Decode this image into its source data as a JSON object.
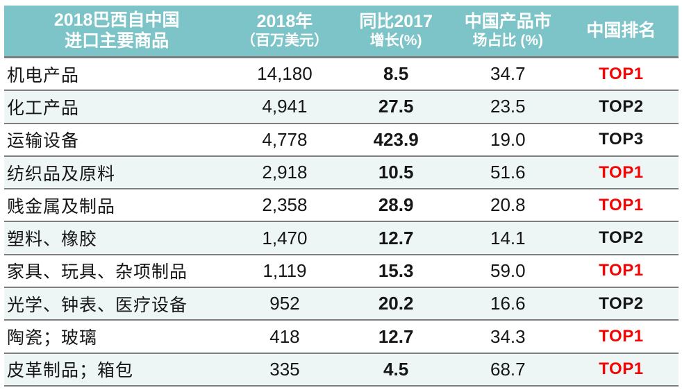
{
  "table": {
    "columns": [
      {
        "line1": "2018巴西自中国",
        "line2": "进口主要商品"
      },
      {
        "line1": "2018年",
        "line2": "（百万美元）"
      },
      {
        "line1": "同比2017",
        "line2": "增长(%)"
      },
      {
        "line1": "中国产品市",
        "line2": "场占比 (%)"
      },
      {
        "line1": "中国排名",
        "line2": ""
      }
    ],
    "rows": [
      {
        "product": "机电产品",
        "value_2018": "14,180",
        "yoy_growth": "8.5",
        "market_share": "34.7",
        "rank": "TOP1",
        "rank_highlight": true
      },
      {
        "product": "化工产品",
        "value_2018": "4,941",
        "yoy_growth": "27.5",
        "market_share": "23.5",
        "rank": "TOP2",
        "rank_highlight": false
      },
      {
        "product": "运输设备",
        "value_2018": "4,778",
        "yoy_growth": "423.9",
        "market_share": "19.0",
        "rank": "TOP3",
        "rank_highlight": false
      },
      {
        "product": "纺织品及原料",
        "value_2018": "2,918",
        "yoy_growth": "10.5",
        "market_share": "51.6",
        "rank": "TOP1",
        "rank_highlight": true
      },
      {
        "product": "贱金属及制品",
        "value_2018": "2,358",
        "yoy_growth": "28.9",
        "market_share": "20.8",
        "rank": "TOP1",
        "rank_highlight": true
      },
      {
        "product": "塑料、橡胶",
        "value_2018": "1,470",
        "yoy_growth": "12.7",
        "market_share": "14.1",
        "rank": "TOP2",
        "rank_highlight": false
      },
      {
        "product": "家具、玩具、杂项制品",
        "value_2018": "1,119",
        "yoy_growth": "15.3",
        "market_share": "59.0",
        "rank": "TOP1",
        "rank_highlight": true
      },
      {
        "product": "光学、钟表、医疗设备",
        "value_2018": "952",
        "yoy_growth": "20.2",
        "market_share": "16.6",
        "rank": "TOP2",
        "rank_highlight": false
      },
      {
        "product": "陶瓷；玻璃",
        "value_2018": "418",
        "yoy_growth": "12.7",
        "market_share": "34.3",
        "rank": "TOP1",
        "rank_highlight": true
      },
      {
        "product": "皮革制品；箱包",
        "value_2018": "335",
        "yoy_growth": "4.5",
        "market_share": "68.7",
        "rank": "TOP1",
        "rank_highlight": true
      }
    ]
  },
  "colors": {
    "header_bg": "#7cc4c7",
    "row_alt_bg": "#edf6f5",
    "divider": "#7e7e7e",
    "rank_top1_red": "#f20505",
    "header_text": "#ffffff",
    "body_text": "#161616"
  },
  "chart_data": {
    "type": "table",
    "title": "2018巴西自中国进口主要商品",
    "columns": [
      "2018巴西自中国进口主要商品",
      "2018年（百万美元）",
      "同比2017增长(%)",
      "中国产品市场占比 (%)",
      "中国排名"
    ],
    "rows": [
      [
        "机电产品",
        14180,
        8.5,
        34.7,
        "TOP1"
      ],
      [
        "化工产品",
        4941,
        27.5,
        23.5,
        "TOP2"
      ],
      [
        "运输设备",
        4778,
        423.9,
        19.0,
        "TOP3"
      ],
      [
        "纺织品及原料",
        2918,
        10.5,
        51.6,
        "TOP1"
      ],
      [
        "贱金属及制品",
        2358,
        28.9,
        20.8,
        "TOP1"
      ],
      [
        "塑料、橡胶",
        1470,
        12.7,
        14.1,
        "TOP2"
      ],
      [
        "家具、玩具、杂项制品",
        1119,
        15.3,
        59.0,
        "TOP1"
      ],
      [
        "光学、钟表、医疗设备",
        952,
        20.2,
        16.6,
        "TOP2"
      ],
      [
        "陶瓷；玻璃",
        418,
        12.7,
        34.3,
        "TOP1"
      ],
      [
        "皮革制品；箱包",
        335,
        4.5,
        68.7,
        "TOP1"
      ]
    ]
  }
}
